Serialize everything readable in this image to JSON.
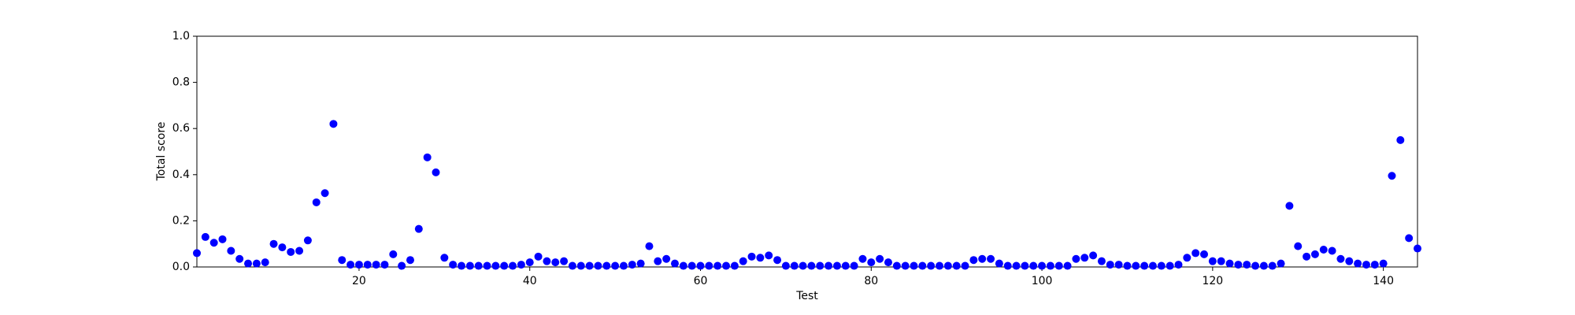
{
  "chart_data": {
    "type": "scatter",
    "xlabel": "Test",
    "ylabel": "Total score",
    "color": "#0000ff",
    "x": [
      1,
      2,
      3,
      4,
      5,
      6,
      7,
      8,
      9,
      10,
      11,
      12,
      13,
      14,
      15,
      16,
      17,
      18,
      19,
      20,
      21,
      22,
      23,
      24,
      25,
      26,
      27,
      28,
      29,
      30,
      31,
      32,
      33,
      34,
      35,
      36,
      37,
      38,
      39,
      40,
      41,
      42,
      43,
      44,
      45,
      46,
      47,
      48,
      49,
      50,
      51,
      52,
      53,
      54,
      55,
      56,
      57,
      58,
      59,
      60,
      61,
      62,
      63,
      64,
      65,
      66,
      67,
      68,
      69,
      70,
      71,
      72,
      73,
      74,
      75,
      76,
      77,
      78,
      79,
      80,
      81,
      82,
      83,
      84,
      85,
      86,
      87,
      88,
      89,
      90,
      91,
      92,
      93,
      94,
      95,
      96,
      97,
      98,
      99,
      100,
      101,
      102,
      103,
      104,
      105,
      106,
      107,
      108,
      109,
      110,
      111,
      112,
      113,
      114,
      115,
      116,
      117,
      118,
      119,
      120,
      121,
      122,
      123,
      124,
      125,
      126,
      127,
      128,
      129,
      130,
      131,
      132,
      133,
      134,
      135,
      136,
      137,
      138,
      139,
      140,
      141,
      142,
      143,
      144
    ],
    "values": [
      0.06,
      0.13,
      0.105,
      0.12,
      0.07,
      0.035,
      0.015,
      0.015,
      0.02,
      0.1,
      0.085,
      0.065,
      0.07,
      0.115,
      0.28,
      0.32,
      0.62,
      0.03,
      0.01,
      0.01,
      0.01,
      0.01,
      0.01,
      0.055,
      0.005,
      0.03,
      0.165,
      0.475,
      0.41,
      0.04,
      0.01,
      0.005,
      0.005,
      0.005,
      0.005,
      0.005,
      0.005,
      0.005,
      0.01,
      0.02,
      0.045,
      0.025,
      0.02,
      0.025,
      0.005,
      0.005,
      0.005,
      0.005,
      0.005,
      0.005,
      0.005,
      0.01,
      0.015,
      0.09,
      0.025,
      0.035,
      0.015,
      0.005,
      0.005,
      0.005,
      0.005,
      0.005,
      0.005,
      0.005,
      0.025,
      0.045,
      0.04,
      0.05,
      0.03,
      0.005,
      0.005,
      0.005,
      0.005,
      0.005,
      0.005,
      0.005,
      0.005,
      0.005,
      0.035,
      0.02,
      0.035,
      0.02,
      0.005,
      0.005,
      0.005,
      0.005,
      0.005,
      0.005,
      0.005,
      0.005,
      0.005,
      0.03,
      0.035,
      0.035,
      0.015,
      0.005,
      0.005,
      0.005,
      0.005,
      0.005,
      0.005,
      0.005,
      0.005,
      0.035,
      0.04,
      0.05,
      0.025,
      0.01,
      0.01,
      0.005,
      0.005,
      0.005,
      0.005,
      0.005,
      0.005,
      0.01,
      0.04,
      0.06,
      0.055,
      0.025,
      0.025,
      0.015,
      0.01,
      0.01,
      0.005,
      0.005,
      0.005,
      0.015,
      0.265,
      0.09,
      0.045,
      0.055,
      0.075,
      0.07,
      0.035,
      0.025,
      0.015,
      0.01,
      0.01,
      0.015,
      0.395,
      0.55,
      0.125,
      0.08
    ],
    "xlim": [
      1,
      144
    ],
    "xticks": [
      20,
      40,
      60,
      80,
      100,
      120,
      140
    ],
    "ylim": [
      0,
      1
    ],
    "yticks": [
      {
        "value": 0,
        "label": "0.0"
      },
      0.2,
      0.4,
      0.6,
      0.8,
      {
        "value": 1,
        "label": "1.0"
      }
    ]
  }
}
